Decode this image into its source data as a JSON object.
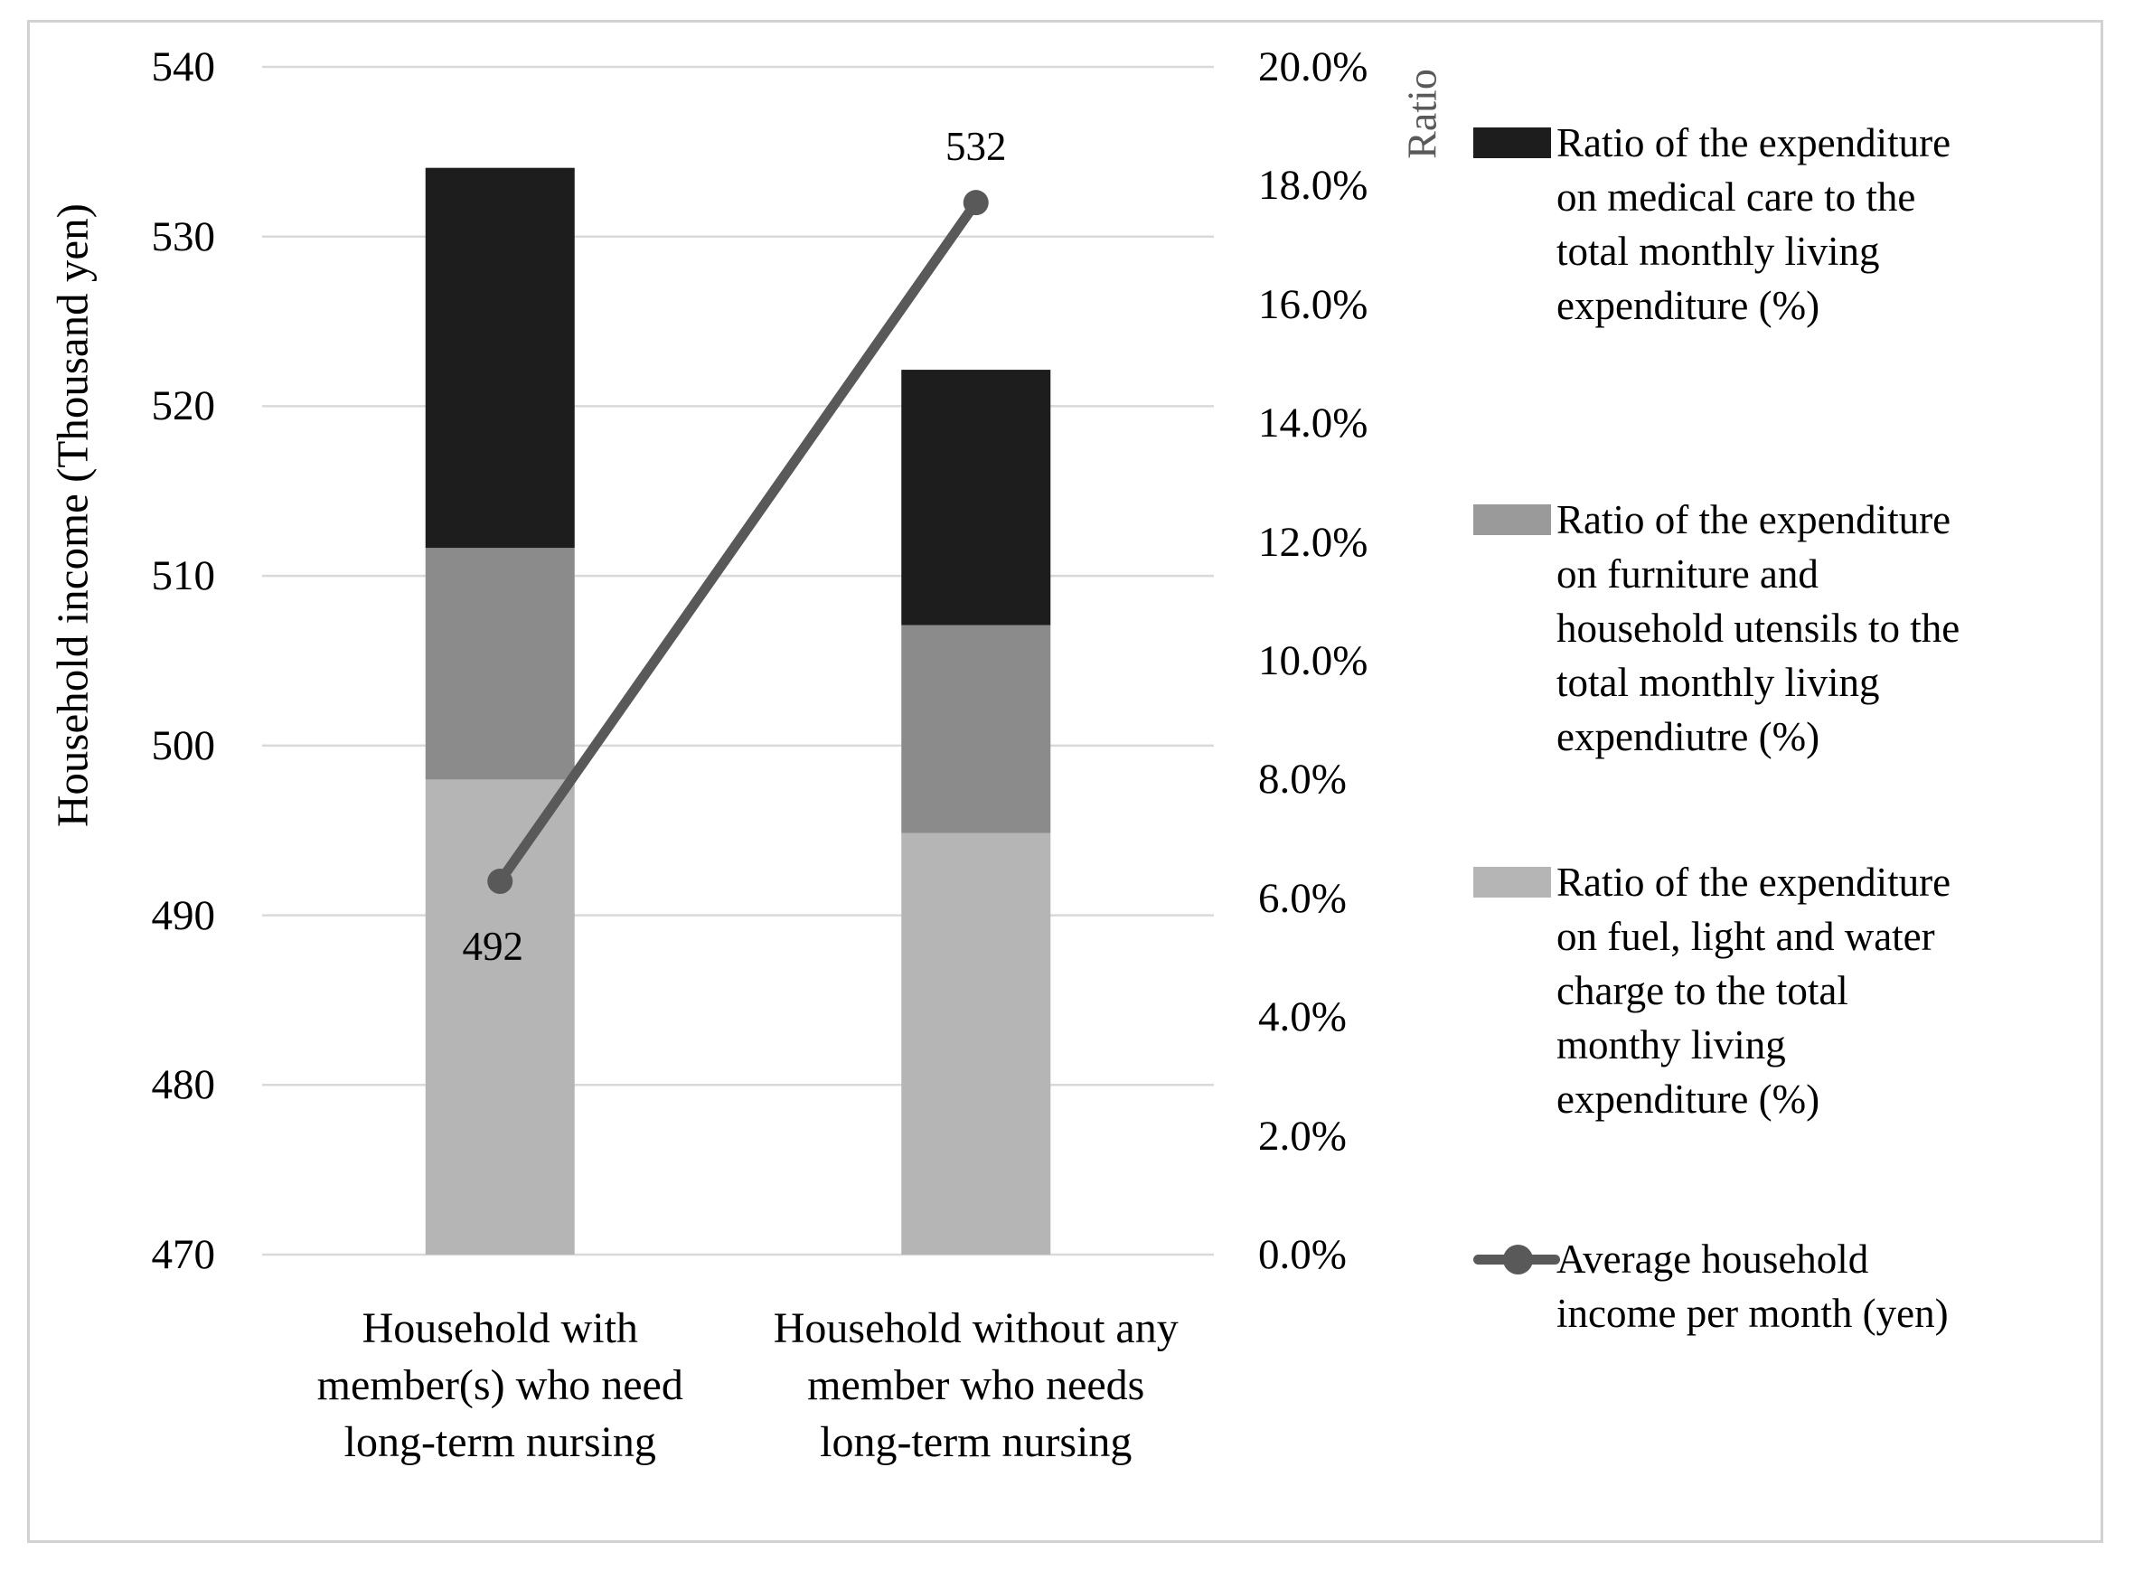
{
  "figure": {
    "background": "#ffffff",
    "border_color": "#d2d2d2"
  },
  "chart_data": {
    "type": "bar",
    "subtype": "stacked-bar-with-line-dual-axis",
    "categories": [
      "Household with member(s) who need long-term nursing",
      "Household without any member who needs long-term nursing"
    ],
    "category_lines": [
      [
        "Household with",
        "member(s) who need",
        "long-term nursing"
      ],
      [
        "Household without any",
        "member who needs",
        "long-term nursing"
      ]
    ],
    "left_axis": {
      "title": "Household income (Thousand yen)",
      "min": 470,
      "max": 540,
      "step": 10,
      "tick_labels": [
        "540",
        "530",
        "520",
        "510",
        "500",
        "490",
        "480",
        "470"
      ]
    },
    "right_axis": {
      "title": "Ratio",
      "min": 0,
      "max": 20,
      "step": 2,
      "tick_labels": [
        "20.0%",
        "18.0%",
        "16.0%",
        "14.0%",
        "12.0%",
        "10.0%",
        "8.0%",
        "6.0%",
        "4.0%",
        "2.0%",
        "0.0%"
      ]
    },
    "grid": true,
    "gridline_color": "#d9d9d9",
    "legend_position": "right",
    "bar_series": [
      {
        "key": "fuel-light-water",
        "name": "Ratio of the expenditure on fuel, light and water charge to the total monthy living expenditure (%)",
        "axis": "right",
        "color": "#b5b5b5",
        "values": [
          8.0,
          7.1
        ]
      },
      {
        "key": "furniture-utensils",
        "name": "Ratio of the expenditure on furniture and household utensils to the total monthly living expendiutre (%)",
        "axis": "right",
        "color": "#8b8b8b",
        "values": [
          3.9,
          3.5
        ]
      },
      {
        "key": "medical-care",
        "name": "Ratio of the expenditure on medical care to the total monthly living expenditure (%)",
        "axis": "right",
        "color": "#1d1d1d",
        "values": [
          6.4,
          4.3
        ]
      }
    ],
    "line_series": {
      "key": "average-income",
      "name": "Average household income per month (yen)",
      "axis": "left",
      "color": "#595959",
      "values": [
        492,
        532
      ],
      "data_labels": [
        "492",
        "532"
      ]
    },
    "legend": [
      {
        "type": "swatch",
        "series_key": "medical-care",
        "color": "#1d1d1d",
        "label": "Ratio of the expenditure on medical care to the total monthly living expenditure (%)",
        "label_lines": [
          "Ratio of the expenditure",
          "on medical care to the",
          "total monthly living",
          "expenditure (%)"
        ]
      },
      {
        "type": "swatch",
        "series_key": "furniture-utensils",
        "color": "#9a9a9a",
        "label": "Ratio of the expenditure on furniture and household utensils to the total monthly living expendiutre (%)",
        "label_lines": [
          "Ratio of the expenditure",
          "on furniture and",
          "household utensils to the",
          "total monthly living",
          "expendiutre (%)"
        ]
      },
      {
        "type": "swatch",
        "series_key": "fuel-light-water",
        "color": "#b5b5b5",
        "label": "Ratio of the expenditure on fuel, light and water charge to the total monthy living expenditure (%)",
        "label_lines": [
          "Ratio of the expenditure",
          "on fuel, light and water",
          "charge to the total",
          "monthy living",
          "expenditure (%)"
        ]
      },
      {
        "type": "line-marker",
        "series_key": "average-income",
        "color": "#595959",
        "label": "Average household income per month (yen)",
        "label_lines": [
          "Average household",
          "income per month (yen)"
        ]
      }
    ]
  }
}
